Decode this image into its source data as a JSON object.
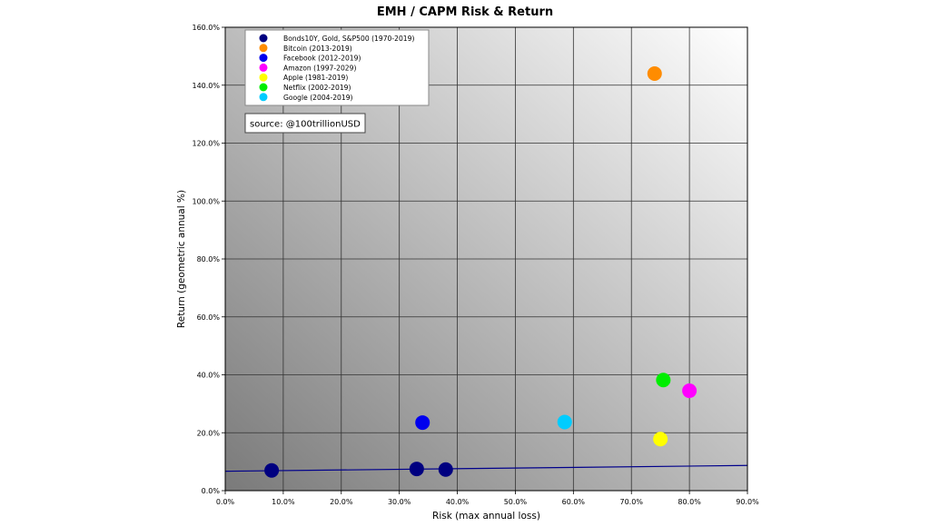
{
  "chart_data": {
    "type": "scatter",
    "title": "EMH / CAPM Risk & Return",
    "xlabel": "Risk (max annual loss)",
    "ylabel": "Return (geometric annual %)",
    "xlim": [
      0,
      0.9
    ],
    "ylim": [
      0,
      1.6
    ],
    "x_ticks": [
      0,
      0.1,
      0.2,
      0.3,
      0.4,
      0.5,
      0.6,
      0.7,
      0.8,
      0.9
    ],
    "x_tick_labels": [
      "0.0%",
      "10.0%",
      "20.0%",
      "30.0%",
      "40.0%",
      "50.0%",
      "60.0%",
      "70.0%",
      "80.0%",
      "90.0%"
    ],
    "y_ticks": [
      0,
      0.2,
      0.4,
      0.6,
      0.8,
      1.0,
      1.2,
      1.4,
      1.6
    ],
    "y_tick_labels": [
      "0.0%",
      "20.0%",
      "40.0%",
      "60.0%",
      "80.0%",
      "100.0%",
      "120.0%",
      "140.0%",
      "160.0%"
    ],
    "grid": true,
    "legend_position": "top-left",
    "annotation": "source: @100trillionUSD",
    "series": [
      {
        "name": "Bonds10Y, Gold, S&P500 (1970-2019)",
        "color": "#000080",
        "points": [
          {
            "x": 0.08,
            "y": 0.07
          },
          {
            "x": 0.33,
            "y": 0.075
          },
          {
            "x": 0.38,
            "y": 0.073
          }
        ]
      },
      {
        "name": "Bitcoin (2013-2019)",
        "color": "#ff8c00",
        "points": [
          {
            "x": 0.74,
            "y": 1.44
          }
        ]
      },
      {
        "name": "Facebook (2012-2019)",
        "color": "#0000ee",
        "points": [
          {
            "x": 0.34,
            "y": 0.235
          }
        ]
      },
      {
        "name": "Amazon (1997-2029)",
        "color": "#ff00ff",
        "points": [
          {
            "x": 0.8,
            "y": 0.345
          }
        ]
      },
      {
        "name": "Apple (1981-2019)",
        "color": "#ffff00",
        "points": [
          {
            "x": 0.75,
            "y": 0.178
          }
        ]
      },
      {
        "name": "Netflix (2002-2019)",
        "color": "#00ee00",
        "points": [
          {
            "x": 0.755,
            "y": 0.382
          }
        ]
      },
      {
        "name": "Google (2004-2019)",
        "color": "#00ccff",
        "points": [
          {
            "x": 0.585,
            "y": 0.237
          }
        ]
      }
    ],
    "trend_line": {
      "color": "#00008b",
      "points": [
        {
          "x": 0.0,
          "y": 0.067
        },
        {
          "x": 0.9,
          "y": 0.087
        }
      ]
    }
  }
}
